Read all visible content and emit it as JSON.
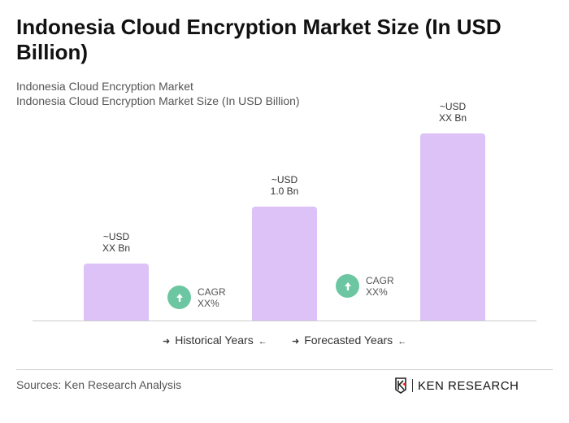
{
  "title": "Indonesia Cloud Encryption Market Size (In USD Billion)",
  "subtitle1": "Indonesia Cloud Encryption Market",
  "subtitle2": "Indonesia Cloud Encryption Market Size (In USD Billion)",
  "chart_data": {
    "type": "bar",
    "categories": [
      "",
      "",
      ""
    ],
    "values": [
      0.5,
      1.0,
      1.64
    ],
    "data_labels": [
      [
        "~USD",
        "XX Bn"
      ],
      [
        "~USD",
        "1.0 Bn"
      ],
      [
        "~USD",
        "XX Bn"
      ]
    ],
    "bar_color": "#dcc2f7",
    "grid": false,
    "annotations": [
      {
        "line1": "CAGR",
        "line2": "XX%",
        "icon": "arrow-up-icon",
        "color": "#6cc6a1"
      },
      {
        "line1": "CAGR",
        "line2": "XX%",
        "icon": "arrow-up-icon",
        "color": "#6cc6a1"
      }
    ],
    "legend": {
      "placement": "bottom",
      "items": [
        "Historical Years",
        "Forecasted Years"
      ]
    }
  },
  "source": "Sources: Ken Research Analysis",
  "logo_text": "KEN RESEARCH"
}
